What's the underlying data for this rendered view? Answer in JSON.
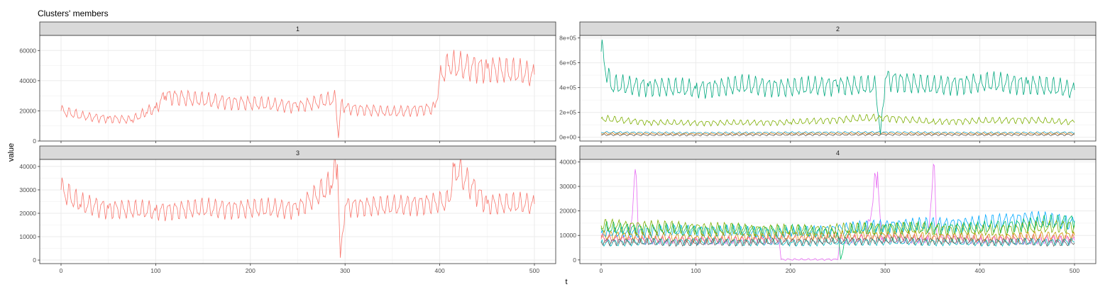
{
  "chart_data": {
    "type": "line",
    "title": "Clusters' members",
    "xlabel": "t",
    "ylabel": "value",
    "xlim": [
      0,
      500
    ],
    "x_ticks": [
      0,
      100,
      200,
      300,
      400,
      500
    ],
    "grid": true,
    "legend": "none",
    "panels": [
      {
        "strip": "1",
        "ylim": [
          0,
          70000
        ],
        "y_ticks": [
          0,
          20000,
          40000,
          60000
        ],
        "y_tick_labels": [
          "0",
          "20000",
          "40000",
          "60000"
        ],
        "series": [
          {
            "color": "#F8766D",
            "x": [
              0,
              25,
              50,
              75,
              90,
              100,
              110,
              150,
              200,
              250,
              290,
              293,
              296,
              300,
              350,
              395,
              400,
              410,
              450,
              500
            ],
            "values": [
              20000,
              16000,
              15000,
              14000,
              19000,
              22000,
              30000,
              27000,
              25000,
              23000,
              28000,
              2000,
              26000,
              22000,
              19000,
              22000,
              43000,
              50000,
              48000,
              44000
            ]
          }
        ]
      },
      {
        "strip": "2",
        "ylim": [
          -30000,
          820000
        ],
        "y_ticks": [
          0,
          200000,
          400000,
          600000,
          800000
        ],
        "y_tick_labels": [
          "0e+00",
          "2e+05",
          "4e+05",
          "6e+05",
          "8e+05"
        ],
        "series": [
          {
            "color": "#00A87E",
            "x": [
              0,
              10,
              50,
              100,
              150,
              200,
              250,
              290,
              295,
              300,
              350,
              400,
              450,
              500
            ],
            "values": [
              690000,
              420000,
              410000,
              390000,
              420000,
              400000,
              420000,
              410000,
              20000,
              470000,
              410000,
              440000,
              430000,
              380000
            ]
          },
          {
            "color": "#7CAE00",
            "x": [
              0,
              50,
              100,
              200,
              295,
              350,
              450,
              500
            ],
            "values": [
              150000,
              120000,
              115000,
              120000,
              160000,
              125000,
              140000,
              120000
            ]
          },
          {
            "color": "#1FA5C9",
            "x": [
              0,
              100,
              200,
              300,
              400,
              500
            ],
            "values": [
              40000,
              35000,
              38000,
              40000,
              36000,
              38000
            ]
          },
          {
            "color": "#E7861B",
            "x": [
              0,
              100,
              200,
              300,
              400,
              500
            ],
            "values": [
              30000,
              28000,
              30000,
              31000,
              29000,
              30000
            ]
          },
          {
            "color": "#636363",
            "x": [
              0,
              100,
              200,
              300,
              400,
              500
            ],
            "values": [
              20000,
              18000,
              20000,
              21000,
              19000,
              20000
            ]
          }
        ]
      },
      {
        "strip": "3",
        "ylim": [
          -1500,
          43000
        ],
        "y_ticks": [
          0,
          10000,
          20000,
          30000,
          40000
        ],
        "y_tick_labels": [
          "0",
          "10000",
          "20000",
          "30000",
          "40000"
        ],
        "series": [
          {
            "color": "#F8766D",
            "x": [
              0,
              20,
              50,
              100,
              150,
              200,
              250,
              285,
              292,
              295,
              300,
              350,
              410,
              415,
              450,
              500
            ],
            "values": [
              30000,
              24000,
              22000,
              21000,
              22000,
              22000,
              22000,
              32000,
              41000,
              1000,
              23000,
              23000,
              25000,
              40000,
              24000,
              24000
            ]
          }
        ]
      },
      {
        "strip": "4",
        "ylim": [
          -1500,
          41000
        ],
        "y_ticks": [
          0,
          10000,
          20000,
          30000,
          40000
        ],
        "y_tick_labels": [
          "0",
          "10000",
          "20000",
          "30000",
          "40000"
        ],
        "series": [
          {
            "color": "#E76BF3",
            "x": [
              0,
              30,
              36,
              40,
              100,
              188,
              190,
              250,
              252,
              280,
              292,
              296,
              300,
              345,
              351,
              355,
              400,
              500
            ],
            "values": [
              9000,
              8000,
              37000,
              8000,
              8000,
              8000,
              200,
              200,
              8000,
              9000,
              36000,
              8000,
              9000,
              8000,
              39000,
              9000,
              8000,
              8000
            ]
          },
          {
            "color": "#00A9FF",
            "x": [
              0,
              100,
              200,
              300,
              400,
              450,
              500
            ],
            "values": [
              11000,
              12000,
              11000,
              14000,
              15000,
              17000,
              15000
            ]
          },
          {
            "color": "#00BE67",
            "x": [
              0,
              100,
              200,
              250,
              253,
              260,
              300,
              400,
              500
            ],
            "values": [
              13000,
              12000,
              12000,
              11000,
              200,
              12000,
              13000,
              13000,
              16000
            ]
          },
          {
            "color": "#7CAE00",
            "x": [
              0,
              100,
              200,
              300,
              400,
              500
            ],
            "values": [
              14000,
              13000,
              12000,
              13000,
              12000,
              14000
            ]
          },
          {
            "color": "#CD9600",
            "x": [
              0,
              100,
              200,
              300,
              400,
              500
            ],
            "values": [
              10000,
              9000,
              9500,
              10000,
              9000,
              10000
            ]
          },
          {
            "color": "#F8766D",
            "x": [
              0,
              100,
              200,
              300,
              400,
              500
            ],
            "values": [
              8500,
              8000,
              8500,
              9000,
              8500,
              9000
            ]
          },
          {
            "color": "#00BFC4",
            "x": [
              0,
              100,
              200,
              300,
              400,
              500
            ],
            "values": [
              7000,
              7500,
              7000,
              7500,
              7000,
              7500
            ]
          },
          {
            "color": "#636363",
            "x": [
              0,
              100,
              200,
              300,
              400,
              500
            ],
            "values": [
              7500,
              7000,
              7500,
              8000,
              7500,
              7000
            ]
          }
        ]
      }
    ]
  }
}
